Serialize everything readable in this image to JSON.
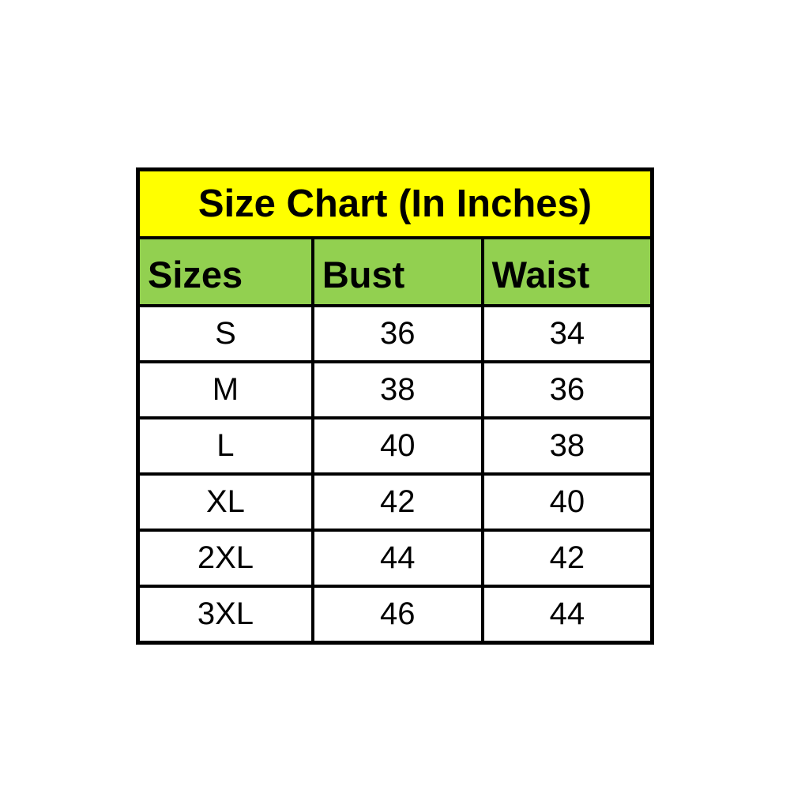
{
  "chart_data": {
    "type": "table",
    "title": "Size Chart (In Inches)",
    "columns": [
      "Sizes",
      "Bust",
      "Waist"
    ],
    "rows": [
      [
        "S",
        "36",
        "34"
      ],
      [
        "M",
        "38",
        "36"
      ],
      [
        "L",
        "40",
        "38"
      ],
      [
        "XL",
        "42",
        "40"
      ],
      [
        "2XL",
        "44",
        "42"
      ],
      [
        "3XL",
        "46",
        "44"
      ]
    ],
    "layout": {
      "title_bg": "#ffff00",
      "header_bg": "#92d050",
      "row_bg": "#ffffff",
      "border_color": "#000000",
      "text_color": "#000000"
    }
  }
}
